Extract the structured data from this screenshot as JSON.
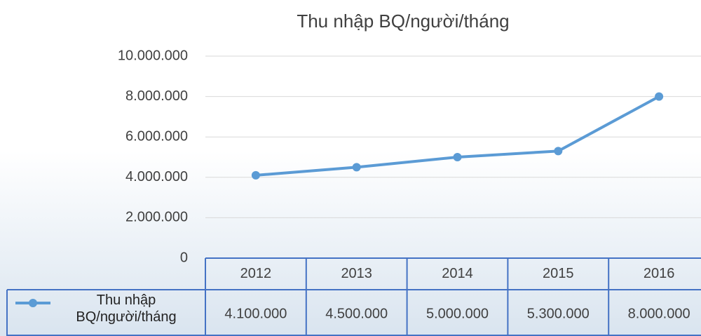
{
  "chart_data": {
    "type": "line",
    "title": "Thu nhập BQ/người/tháng",
    "categories": [
      "2012",
      "2013",
      "2014",
      "2015",
      "2016"
    ],
    "series": [
      {
        "name": "Thu nhập BQ/người/tháng",
        "color": "#5b9bd5",
        "values": [
          4100000,
          4500000,
          5000000,
          5300000,
          8000000
        ],
        "value_labels": [
          "4.100.000",
          "4.500.000",
          "5.000.000",
          "5.300.000",
          "8.000.000"
        ]
      }
    ],
    "ylim": [
      0,
      10000000
    ],
    "yticks": [
      0,
      {
        "value": 2000000,
        "label": "2.000.000"
      },
      {
        "value": 4000000,
        "label": "4.000.000"
      },
      {
        "value": 6000000,
        "label": "6.000.000"
      },
      {
        "value": 8000000,
        "label": "8.000.000"
      },
      {
        "value": 10000000,
        "label": "10.000.000"
      }
    ],
    "grid": true,
    "data_table": true
  }
}
